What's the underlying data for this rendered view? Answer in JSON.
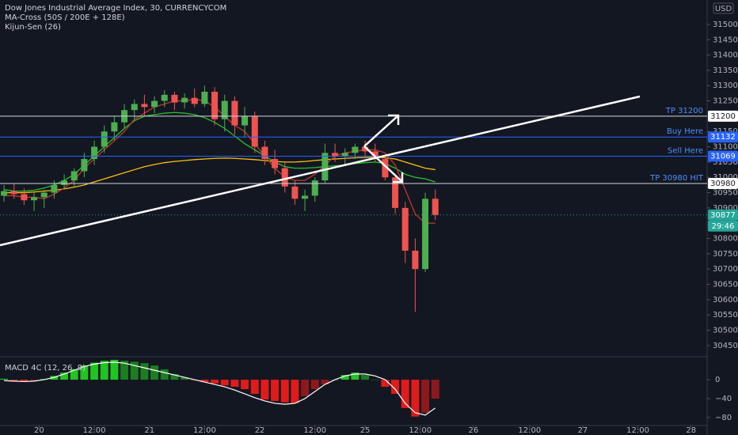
{
  "chart_data": [
    {
      "type": "candlestick",
      "title": "Dow Jones Industrial Average Index, 30, CURRENCYCOM",
      "indicators": [
        "MA-Cross (50S / 200E + 128E)",
        "Kijun-Sen (26)"
      ],
      "currency": "USD",
      "countdown": "29:46",
      "last_price": 30877,
      "grid": false,
      "up_color": "#4caf50",
      "down_color": "#ef5350",
      "x": [
        0,
        1,
        2,
        3,
        4,
        5,
        6,
        7,
        8,
        9,
        10,
        11,
        12,
        13,
        14,
        15,
        16,
        17,
        18,
        19,
        20,
        21,
        22,
        23,
        24,
        25,
        26,
        27,
        28,
        29,
        30,
        31,
        32,
        33,
        34,
        35,
        36,
        37,
        38,
        39,
        40,
        41,
        42,
        43
      ],
      "open": [
        30940,
        30955,
        30945,
        30925,
        30935,
        30950,
        30975,
        30990,
        31020,
        31060,
        31100,
        31150,
        31180,
        31220,
        31240,
        31230,
        31250,
        31270,
        31245,
        31260,
        31240,
        31280,
        31190,
        31250,
        31170,
        31200,
        31100,
        31060,
        31030,
        30970,
        30930,
        30940,
        30990,
        31080,
        31070,
        31080,
        31100,
        31085,
        31060,
        31000,
        30900,
        30760,
        30700,
        30930
      ],
      "high": [
        30975,
        30980,
        30965,
        30950,
        30960,
        30990,
        31010,
        31030,
        31080,
        31120,
        31170,
        31200,
        31240,
        31255,
        31270,
        31265,
        31285,
        31280,
        31275,
        31290,
        31300,
        31295,
        31270,
        31265,
        31230,
        31215,
        31120,
        31090,
        31050,
        30990,
        30960,
        31000,
        31110,
        31110,
        31095,
        31110,
        31120,
        31110,
        31075,
        31010,
        30920,
        30800,
        30950,
        30960
      ],
      "low": [
        30920,
        30930,
        30910,
        30890,
        30900,
        30930,
        30960,
        30970,
        31000,
        31040,
        31080,
        31120,
        31160,
        31190,
        31200,
        31210,
        31230,
        31220,
        31225,
        31230,
        31230,
        31170,
        31150,
        31140,
        31130,
        31080,
        31040,
        31010,
        30950,
        30910,
        30890,
        30920,
        30980,
        31050,
        31040,
        31060,
        31070,
        31050,
        30990,
        30880,
        30720,
        30560,
        30690,
        30860
      ],
      "close": [
        30955,
        30945,
        30925,
        30935,
        30950,
        30975,
        30990,
        31020,
        31060,
        31100,
        31150,
        31180,
        31220,
        31240,
        31230,
        31250,
        31270,
        31245,
        31260,
        31240,
        31280,
        31190,
        31250,
        31170,
        31200,
        31100,
        31060,
        31030,
        30970,
        30930,
        30940,
        30990,
        31080,
        31070,
        31080,
        31100,
        31085,
        31060,
        31000,
        30900,
        30760,
        30700,
        30930,
        30877
      ],
      "overlays": [
        {
          "color": "#ffc107",
          "values": [
            30950,
            30950,
            30950,
            30952,
            30955,
            30958,
            30962,
            30968,
            30975,
            30985,
            30995,
            31005,
            31015,
            31025,
            31035,
            31042,
            31048,
            31052,
            31055,
            31058,
            31060,
            31062,
            31063,
            31062,
            31060,
            31058,
            31055,
            31052,
            31050,
            31050,
            31052,
            31055,
            31058,
            31060,
            31062,
            31064,
            31065,
            31066,
            31064,
            31060,
            31050,
            31040,
            31030,
            31025
          ]
        },
        {
          "color": "#2bc02b",
          "values": [
            30960,
            30955,
            30955,
            30958,
            30965,
            30975,
            30990,
            31010,
            31040,
            31070,
            31100,
            31130,
            31160,
            31185,
            31200,
            31205,
            31210,
            31212,
            31210,
            31205,
            31195,
            31180,
            31160,
            31135,
            31110,
            31090,
            31070,
            31050,
            31035,
            31030,
            31030,
            31032,
            31035,
            31038,
            31040,
            31045,
            31048,
            31050,
            31045,
            31030,
            31010,
            31000,
            30995,
            30985
          ]
        },
        {
          "color": "#c0392b",
          "values": [
            30940,
            30940,
            30935,
            30935,
            30930,
            30945,
            30965,
            30990,
            31030,
            31060,
            31090,
            31120,
            31150,
            31190,
            31210,
            31230,
            31240,
            31250,
            31250,
            31255,
            31250,
            31230,
            31200,
            31170,
            31150,
            31110,
            31070,
            31030,
            31000,
            30990,
            30990,
            31010,
            31040,
            31070,
            31080,
            31085,
            31090,
            31090,
            31080,
            31040,
            30960,
            30880,
            30850,
            30850
          ]
        }
      ],
      "levels": [
        {
          "label": "TP 31200",
          "value": 31200,
          "color": "#d1d4dc"
        },
        {
          "label": "Buy Here",
          "value": 31132,
          "color": "#2962ff"
        },
        {
          "label": "Sell Here",
          "value": 31069,
          "color": "#2962ff"
        },
        {
          "label": "TP 30980 HIT",
          "value": 30980,
          "color": "#d1d4dc"
        }
      ],
      "xlim": [
        -0.4,
        70.1
      ],
      "ylim": [
        30416,
        31580
      ],
      "yticks": [
        31500,
        31450,
        31400,
        31350,
        31300,
        31250,
        31150,
        31100,
        31050,
        31000,
        30950,
        30900,
        30800,
        30750,
        30700,
        30650,
        30600,
        30550,
        30500,
        30450
      ],
      "xticks": [
        {
          "value": 3.5,
          "label": "20"
        },
        {
          "value": 9,
          "label": "12:00"
        },
        {
          "value": 14.5,
          "label": "21"
        },
        {
          "value": 20,
          "label": "12:00"
        },
        {
          "value": 25.5,
          "label": "22"
        },
        {
          "value": 31,
          "label": "12:00"
        },
        {
          "value": 36,
          "label": "25"
        },
        {
          "value": 41.5,
          "label": "12:00"
        },
        {
          "value": 46.8,
          "label": "26"
        },
        {
          "value": 52.4,
          "label": "12:00"
        },
        {
          "value": 57.7,
          "label": "27"
        },
        {
          "value": 63.2,
          "label": "12:00"
        },
        {
          "value": 68.5,
          "label": "28"
        }
      ]
    },
    {
      "type": "macd",
      "title": "MACD 4C (12, 26, 9)",
      "pos_color": "#22c322",
      "neg_color": "#e01b1b",
      "line_color": "#ffffff",
      "histogram": [
        2,
        -2,
        -4,
        -3,
        2,
        8,
        15,
        22,
        30,
        36,
        40,
        42,
        40,
        38,
        35,
        30,
        22,
        12,
        5,
        -2,
        -5,
        -8,
        -12,
        -15,
        -20,
        -30,
        -42,
        -45,
        -48,
        -50,
        -35,
        -20,
        -10,
        0,
        10,
        15,
        10,
        0,
        -15,
        -30,
        -60,
        -78,
        -70,
        -40
      ],
      "macd": [
        -2,
        -3,
        -4,
        -3,
        0,
        5,
        12,
        20,
        28,
        33,
        36,
        37,
        35,
        30,
        25,
        20,
        15,
        10,
        5,
        0,
        -5,
        -10,
        -15,
        -22,
        -30,
        -38,
        -45,
        -50,
        -52,
        -50,
        -40,
        -25,
        -10,
        0,
        8,
        12,
        12,
        8,
        0,
        -20,
        -50,
        -70,
        -75,
        -60
      ],
      "ylim": [
        -97,
        47
      ],
      "yticks": [
        0,
        {
          "value": -40,
          "label": "−40"
        },
        {
          "value": -80,
          "label": "−80"
        }
      ]
    }
  ]
}
